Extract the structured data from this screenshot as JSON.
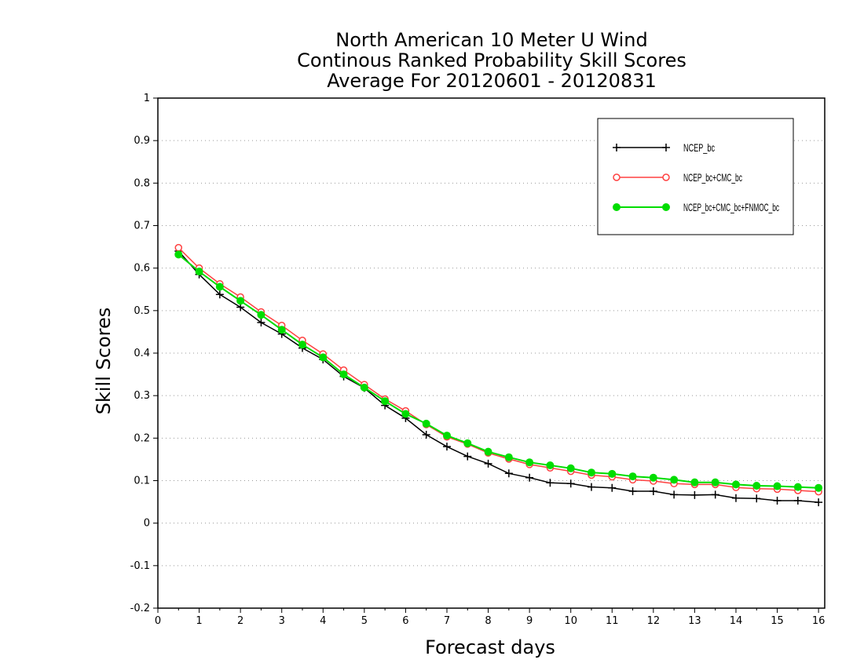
{
  "chart_data": {
    "type": "line",
    "title": [
      "North American 10 Meter U Wind",
      "Continous Ranked Probability Skill Scores",
      "Average For 20120601 - 20120831"
    ],
    "xlabel": "Forecast days",
    "ylabel": "Skill Scores",
    "xlim": [
      0,
      16.15
    ],
    "ylim": [
      -0.2,
      1
    ],
    "xticks": [
      0,
      1,
      2,
      3,
      4,
      5,
      6,
      7,
      8,
      9,
      10,
      11,
      12,
      13,
      14,
      15,
      16
    ],
    "yticks": [
      -0.2,
      -0.1,
      0,
      0.1,
      0.2,
      0.3,
      0.4,
      0.5,
      0.6,
      0.7,
      0.8,
      0.9,
      1
    ],
    "ytick_labels": [
      "-0.2",
      "-0.1",
      "0",
      "0.1",
      "0.2",
      "0.3",
      "0.4",
      "0.5",
      "0.6",
      "0.7",
      "0.8",
      "0.9",
      "1"
    ],
    "grid": "horizontal-dotted",
    "legend_position": "top-right",
    "x": [
      0.5,
      1,
      1.5,
      2,
      2.5,
      3,
      3.5,
      4,
      4.5,
      5,
      5.5,
      6,
      6.5,
      7,
      7.5,
      8,
      8.5,
      9,
      9.5,
      10,
      10.5,
      11,
      11.5,
      12,
      12.5,
      13,
      13.5,
      14,
      14.5,
      15,
      15.5,
      16
    ],
    "series": [
      {
        "name": "NCEP_bc",
        "color": "#000000",
        "marker": "plus",
        "values": [
          0.64,
          0.585,
          0.538,
          0.508,
          0.472,
          0.445,
          0.412,
          0.385,
          0.345,
          0.318,
          0.277,
          0.247,
          0.208,
          0.18,
          0.157,
          0.14,
          0.117,
          0.107,
          0.095,
          0.093,
          0.085,
          0.083,
          0.075,
          0.075,
          0.067,
          0.066,
          0.067,
          0.059,
          0.058,
          0.053,
          0.053,
          0.049
        ]
      },
      {
        "name": "NCEP_bc+CMC_bc",
        "color": "#ff4040",
        "marker": "circle-open",
        "values": [
          0.648,
          0.6,
          0.563,
          0.532,
          0.497,
          0.465,
          0.43,
          0.398,
          0.36,
          0.326,
          0.292,
          0.264,
          0.232,
          0.203,
          0.186,
          0.165,
          0.151,
          0.138,
          0.13,
          0.122,
          0.113,
          0.109,
          0.102,
          0.099,
          0.093,
          0.091,
          0.091,
          0.084,
          0.081,
          0.08,
          0.077,
          0.074
        ]
      },
      {
        "name": "NCEP_bc+CMC_bc+FNMOC_bc",
        "color": "#00dd00",
        "marker": "circle-filled",
        "values": [
          0.632,
          0.592,
          0.556,
          0.523,
          0.49,
          0.455,
          0.42,
          0.39,
          0.35,
          0.319,
          0.287,
          0.257,
          0.234,
          0.206,
          0.188,
          0.168,
          0.155,
          0.143,
          0.136,
          0.129,
          0.119,
          0.116,
          0.11,
          0.107,
          0.102,
          0.096,
          0.096,
          0.091,
          0.088,
          0.087,
          0.085,
          0.083
        ]
      }
    ]
  }
}
